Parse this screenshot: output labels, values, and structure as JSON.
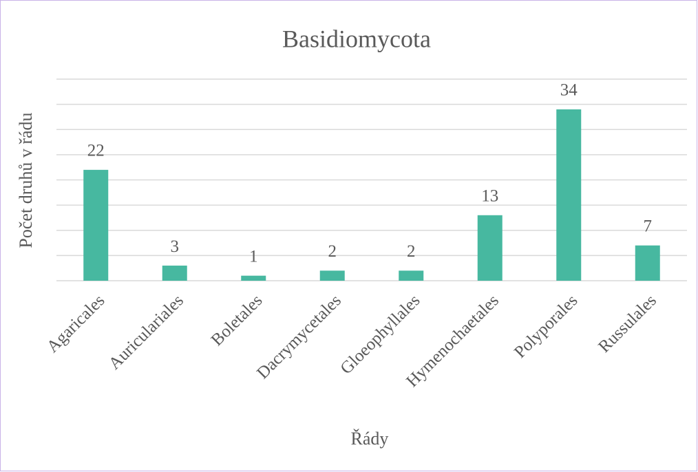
{
  "chart_data": {
    "type": "bar",
    "title": "Basidiomycota",
    "x_label": "Řády",
    "y_label": "Počet druhů v řádu",
    "categories": [
      "Agaricales",
      "Auriculariales",
      "Boletales",
      "Dacrymycetales",
      "Gloeophyllales",
      "Hymenochaetales",
      "Polyporales",
      "Russulales"
    ],
    "values": [
      22,
      3,
      1,
      2,
      2,
      13,
      34,
      7
    ],
    "color": "#47b8a0",
    "ylim": [
      0,
      40
    ],
    "yticks": [
      0,
      5,
      10,
      15,
      20,
      25,
      30,
      35,
      40
    ],
    "grid": true
  }
}
